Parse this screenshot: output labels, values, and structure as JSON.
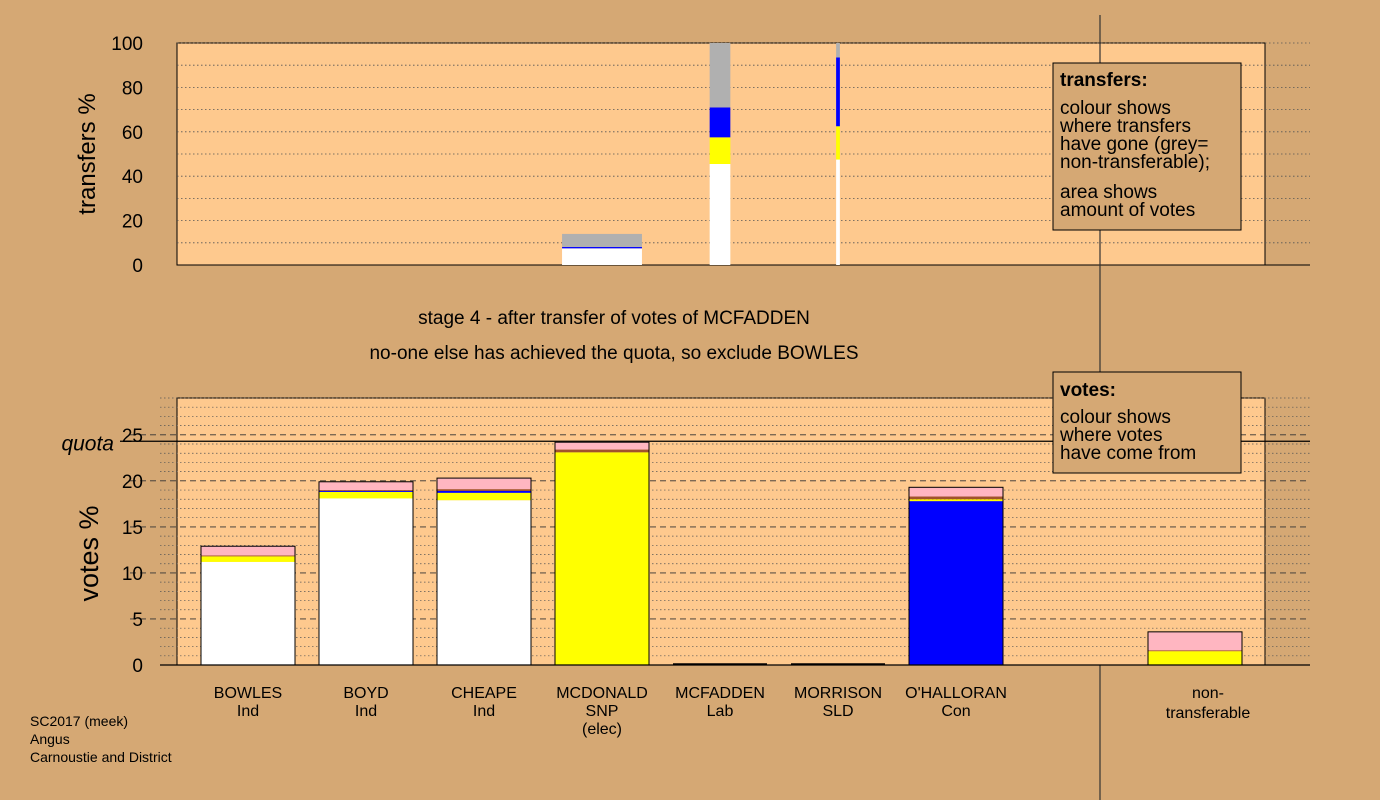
{
  "colors": {
    "background": "#d5a874",
    "panel": "#fec98e",
    "box": "#d5a874",
    "white": "#ffffff",
    "yellow": "#ffff00",
    "blue": "#0000ff",
    "grey": "#b0b0b0",
    "pink": "#ffb6c1",
    "brown": "#a0522d",
    "red": "#cc0000"
  },
  "chart_data": {
    "type": "bar",
    "stage_text": "stage 4 - after transfer of votes of MCFADDEN",
    "status_text": "no-one else has achieved the quota, so exclude BOWLES",
    "footer": [
      "SC2017 (meek)",
      "Angus",
      "Carnoustie and District"
    ],
    "transfers": {
      "ylabel": "transfers %",
      "ylim": [
        0,
        100
      ],
      "yticks": [
        0,
        20,
        40,
        60,
        80,
        100
      ],
      "legend": {
        "title": "transfers:",
        "lines_a": [
          "colour shows",
          "where transfers",
          "have gone (grey=",
          "non-transferable);"
        ],
        "lines_b": [
          "area shows",
          "amount of votes"
        ]
      },
      "bars": [
        {
          "index": 3,
          "width_fraction": 0.85,
          "segments": [
            {
              "color": "white",
              "value": 7.5
            },
            {
              "color": "blue",
              "value": 0.6
            },
            {
              "color": "grey",
              "value": 5.9
            }
          ]
        },
        {
          "index": 4,
          "width_fraction": 0.22,
          "segments": [
            {
              "color": "white",
              "value": 45.5
            },
            {
              "color": "yellow",
              "value": 12
            },
            {
              "color": "blue",
              "value": 13.5
            },
            {
              "color": "grey",
              "value": 29
            }
          ]
        },
        {
          "index": 5,
          "width_fraction": 0.04,
          "segments": [
            {
              "color": "white",
              "value": 47.5
            },
            {
              "color": "yellow",
              "value": 15
            },
            {
              "color": "blue",
              "value": 31
            },
            {
              "color": "grey",
              "value": 6.5
            }
          ]
        }
      ]
    },
    "votes": {
      "ylabel": "votes %",
      "ylim": [
        0,
        29
      ],
      "yticks": [
        0,
        5,
        10,
        15,
        20,
        25
      ],
      "quota": 24.3,
      "quota_label": "quota",
      "legend": {
        "title": "votes:",
        "lines": [
          "colour shows",
          "where votes",
          "have come from"
        ]
      },
      "candidates": [
        {
          "name": "BOWLES",
          "party": "Ind",
          "note": "",
          "segments": [
            {
              "color": "white",
              "value": 11.2
            },
            {
              "color": "yellow",
              "value": 0.6
            },
            {
              "color": "brown",
              "value": 0.1
            },
            {
              "color": "pink",
              "value": 1.0
            }
          ]
        },
        {
          "name": "BOYD",
          "party": "Ind",
          "note": "",
          "segments": [
            {
              "color": "white",
              "value": 18.1
            },
            {
              "color": "yellow",
              "value": 0.7
            },
            {
              "color": "blue",
              "value": 0.1
            },
            {
              "color": "brown",
              "value": 0.1
            },
            {
              "color": "pink",
              "value": 0.9
            }
          ]
        },
        {
          "name": "CHEAPE",
          "party": "Ind",
          "note": "",
          "segments": [
            {
              "color": "white",
              "value": 17.9
            },
            {
              "color": "yellow",
              "value": 0.8
            },
            {
              "color": "blue",
              "value": 0.2
            },
            {
              "color": "brown",
              "value": 0.2
            },
            {
              "color": "pink",
              "value": 1.2
            }
          ]
        },
        {
          "name": "MCDONALD",
          "party": "SNP",
          "note": "(elec)",
          "segments": [
            {
              "color": "yellow",
              "value": 23.1
            },
            {
              "color": "brown",
              "value": 0.3
            },
            {
              "color": "pink",
              "value": 0.8
            }
          ]
        },
        {
          "name": "MCFADDEN",
          "party": "Lab",
          "note": "",
          "segments": []
        },
        {
          "name": "MORRISON",
          "party": "SLD",
          "note": "",
          "segments": []
        },
        {
          "name": "O'HALLORAN",
          "party": "Con",
          "note": "",
          "segments": [
            {
              "color": "blue",
              "value": 17.8
            },
            {
              "color": "yellow",
              "value": 0.2
            },
            {
              "color": "brown",
              "value": 0.3
            },
            {
              "color": "pink",
              "value": 1.0
            }
          ]
        }
      ],
      "nontransferable": {
        "label_lines": [
          "non-",
          "transferable"
        ],
        "segments": [
          {
            "color": "yellow",
            "value": 1.5
          },
          {
            "color": "brown",
            "value": 0.1
          },
          {
            "color": "pink",
            "value": 2.0
          }
        ]
      }
    }
  }
}
